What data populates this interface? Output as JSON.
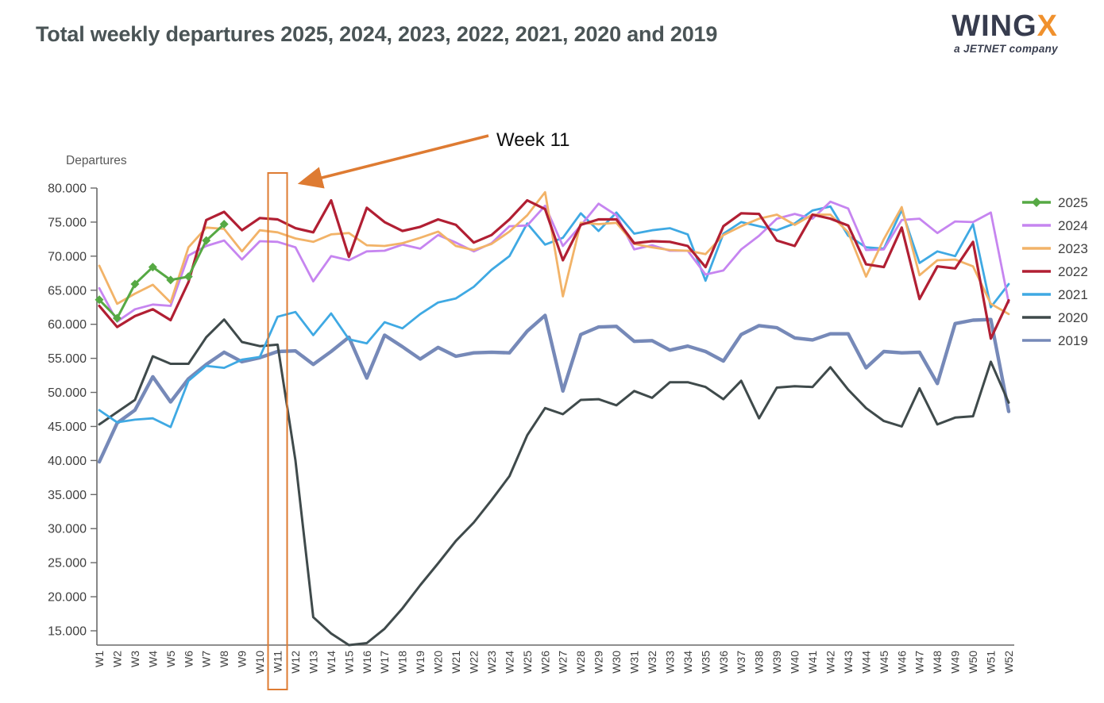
{
  "header": {
    "title": "Total weekly departures 2025, 2024, 2023, 2022, 2021, 2020 and 2019",
    "logo": {
      "brand_prefix": "WING",
      "brand_suffix": "X",
      "tagline": "a JETNET company"
    }
  },
  "annotation": {
    "label": "Week 11",
    "highlighted_week": "W11",
    "accent_color": "#de7b32"
  },
  "chart_data": {
    "type": "line",
    "title": "Total weekly departures 2025, 2024, 2023, 2022, 2021, 2020 and 2019",
    "xlabel": "",
    "ylabel": "Departures",
    "ylim": [
      12900,
      80000
    ],
    "y_ticks": [
      15000,
      20000,
      25000,
      30000,
      35000,
      40000,
      45000,
      50000,
      55000,
      60000,
      65000,
      70000,
      75000,
      80000
    ],
    "grid": false,
    "legend_position": "right",
    "x_categories": [
      "W1",
      "W2",
      "W3",
      "W4",
      "W5",
      "W6",
      "W7",
      "W8",
      "W9",
      "W10",
      "W11",
      "W12",
      "W13",
      "W14",
      "W15",
      "W16",
      "W17",
      "W18",
      "W19",
      "W20",
      "W21",
      "W22",
      "W23",
      "W24",
      "W25",
      "W26",
      "W27",
      "W28",
      "W29",
      "W30",
      "W31",
      "W32",
      "W33",
      "W34",
      "W35",
      "W36",
      "W37",
      "W38",
      "W39",
      "W40",
      "W41",
      "W42",
      "W43",
      "W44",
      "W45",
      "W46",
      "W47",
      "W48",
      "W49",
      "W50",
      "W51",
      "W52"
    ],
    "series": [
      {
        "name": "2025",
        "color": "#56a944",
        "marker": "diamond",
        "values": [
          63600,
          60900,
          65900,
          68400,
          66500,
          67000,
          72300,
          74700
        ]
      },
      {
        "name": "2024",
        "color": "#c685f0",
        "marker": "none",
        "values": [
          65300,
          60400,
          62200,
          62900,
          62700,
          70100,
          71500,
          72300,
          69500,
          72200,
          72100,
          71300,
          66300,
          70000,
          69400,
          70700,
          70800,
          71700,
          71100,
          73100,
          72000,
          70700,
          71900,
          74400,
          74500,
          77400,
          71500,
          74500,
          77700,
          76000,
          71000,
          71600,
          70800,
          70800,
          67300,
          67900,
          71000,
          73000,
          75500,
          76200,
          75500,
          78000,
          77000,
          70900,
          71000,
          75300,
          75500,
          73400,
          75100,
          75000,
          76400,
          63200
        ]
      },
      {
        "name": "2023",
        "color": "#f2b368",
        "marker": "none",
        "values": [
          68600,
          63000,
          64500,
          65800,
          63200,
          71300,
          74200,
          74000,
          70700,
          73800,
          73500,
          72600,
          72100,
          73200,
          73400,
          71600,
          71500,
          71900,
          72700,
          73600,
          71500,
          70900,
          71800,
          73600,
          76000,
          79400,
          64100,
          74900,
          74700,
          74900,
          71800,
          71300,
          70900,
          70800,
          70300,
          73100,
          74400,
          75500,
          76100,
          74600,
          76100,
          76100,
          73500,
          67000,
          72500,
          77200,
          67200,
          69400,
          69500,
          68500,
          63000,
          61500
        ]
      },
      {
        "name": "2022",
        "color": "#b11f33",
        "marker": "none",
        "values": [
          62700,
          59600,
          61200,
          62200,
          60600,
          66200,
          75300,
          76500,
          73800,
          75600,
          75400,
          74100,
          73500,
          78200,
          69900,
          77100,
          75000,
          73700,
          74300,
          75400,
          74600,
          72000,
          73100,
          75400,
          78200,
          76900,
          69400,
          74600,
          75400,
          75400,
          71900,
          72200,
          72100,
          71500,
          68400,
          74400,
          76300,
          76200,
          72300,
          71500,
          76100,
          75500,
          74500,
          68800,
          68400,
          74200,
          63700,
          68500,
          68200,
          72100,
          57900,
          63500
        ]
      },
      {
        "name": "2021",
        "color": "#3fa9e3",
        "marker": "none",
        "values": [
          47400,
          45600,
          46000,
          46200,
          44900,
          51700,
          53900,
          53600,
          54800,
          55200,
          61100,
          61800,
          58400,
          61600,
          57800,
          57200,
          60300,
          59400,
          61500,
          63200,
          63800,
          65500,
          68000,
          70000,
          74800,
          71700,
          72700,
          76300,
          73700,
          76400,
          73300,
          73800,
          74100,
          73200,
          66400,
          73300,
          75000,
          74400,
          73800,
          74800,
          76700,
          77300,
          73000,
          71300,
          71100,
          76800,
          69000,
          70700,
          70000,
          74700,
          62500,
          65900
        ]
      },
      {
        "name": "2020",
        "color": "#3f4a4b",
        "marker": "none",
        "values": [
          45300,
          47100,
          48900,
          55300,
          54200,
          54200,
          58100,
          60700,
          57400,
          56800,
          57000,
          40000,
          17000,
          14600,
          12900,
          13200,
          15300,
          18300,
          21700,
          24900,
          28200,
          30900,
          34200,
          37700,
          43700,
          47700,
          46800,
          48900,
          49000,
          48100,
          50200,
          49200,
          51500,
          51500,
          50800,
          49000,
          51700,
          46200,
          50700,
          50900,
          50800,
          53700,
          50400,
          47700,
          45800,
          45000,
          50600,
          45300,
          46300,
          46500,
          54500,
          48500
        ]
      },
      {
        "name": "2019",
        "color": "#7689b8",
        "marker": "none",
        "values": [
          39800,
          45500,
          47400,
          52300,
          48600,
          52000,
          54100,
          55900,
          54500,
          55100,
          56000,
          56100,
          54100,
          56000,
          58100,
          52100,
          58400,
          56700,
          54900,
          56600,
          55300,
          55800,
          55900,
          55800,
          59000,
          61300,
          50200,
          58500,
          59600,
          59700,
          57500,
          57600,
          56200,
          56800,
          56000,
          54600,
          58500,
          59800,
          59500,
          58000,
          57700,
          58600,
          58600,
          53600,
          56000,
          55800,
          55900,
          51300,
          60100,
          60600,
          60700,
          47200
        ]
      }
    ]
  }
}
